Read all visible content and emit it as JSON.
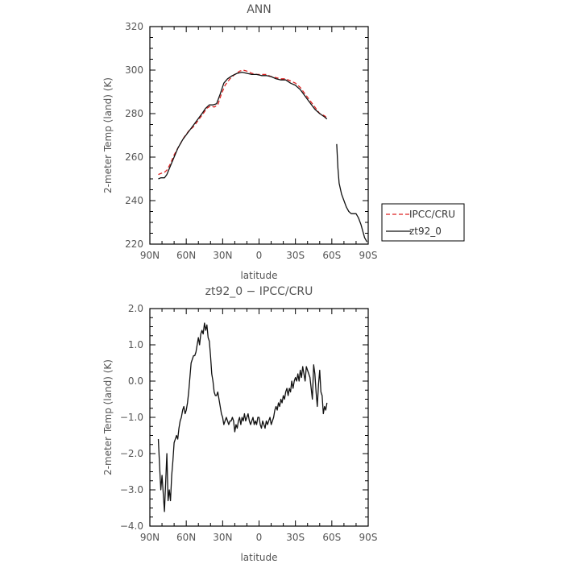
{
  "chart_data": [
    {
      "type": "line",
      "title": "ANN",
      "xlabel": "latitude",
      "ylabel": "2-meter Temp (land) (K)",
      "x_ticks": [
        "90N",
        "60N",
        "30N",
        "0",
        "30S",
        "60S",
        "90S"
      ],
      "y_ticks": [
        "320",
        "300",
        "280",
        "260",
        "240",
        "220"
      ],
      "xlim": [
        90,
        -90
      ],
      "ylim": [
        220,
        320
      ],
      "legend": {
        "placement": "right-of-plot",
        "entries": [
          "IPCC/CRU",
          "zt92_0"
        ]
      },
      "series": [
        {
          "name": "IPCC/CRU",
          "color": "#dd2222",
          "dash": "dashed",
          "points": [
            [
              83,
              252
            ],
            [
              81,
              252.5
            ],
            [
              78,
              253
            ],
            [
              76,
              254
            ],
            [
              73,
              257
            ],
            [
              70,
              261
            ],
            [
              66,
              265
            ],
            [
              62,
              269
            ],
            [
              58,
              272
            ],
            [
              54,
              274
            ],
            [
              50,
              277
            ],
            [
              46,
              280
            ],
            [
              43,
              282.5
            ],
            [
              40,
              283.5
            ],
            [
              37,
              283
            ],
            [
              34,
              284
            ],
            [
              31,
              289
            ],
            [
              28,
              293
            ],
            [
              24,
              296
            ],
            [
              20,
              298
            ],
            [
              16,
              299.5
            ],
            [
              13,
              300
            ],
            [
              10,
              299.5
            ],
            [
              6,
              298.5
            ],
            [
              2,
              298
            ],
            [
              -2,
              298
            ],
            [
              -6,
              298
            ],
            [
              -10,
              297
            ],
            [
              -14,
              296.5
            ],
            [
              -18,
              296
            ],
            [
              -22,
              296
            ],
            [
              -26,
              295
            ],
            [
              -30,
              294
            ],
            [
              -34,
              292
            ],
            [
              -38,
              289
            ],
            [
              -42,
              286
            ],
            [
              -46,
              283
            ],
            [
              -50,
              280
            ],
            [
              -54,
              279
            ],
            [
              -56,
              278
            ]
          ]
        },
        {
          "name": "zt92_0",
          "color": "#111111",
          "dash": "solid",
          "points": [
            [
              83,
              250
            ],
            [
              81,
              250.5
            ],
            [
              78,
              250.5
            ],
            [
              76,
              252
            ],
            [
              73,
              256
            ],
            [
              70,
              260
            ],
            [
              67,
              264
            ],
            [
              63,
              268
            ],
            [
              59,
              271
            ],
            [
              55,
              274
            ],
            [
              51,
              277
            ],
            [
              47,
              280
            ],
            [
              44,
              282.5
            ],
            [
              41,
              284
            ],
            [
              38,
              284
            ],
            [
              35,
              284.5
            ],
            [
              32,
              289
            ],
            [
              29,
              294
            ],
            [
              26,
              296
            ],
            [
              22,
              297.5
            ],
            [
              18,
              298.5
            ],
            [
              14,
              299
            ],
            [
              10,
              298.5
            ],
            [
              6,
              298
            ],
            [
              2,
              298
            ],
            [
              -2,
              297.5
            ],
            [
              -6,
              297.5
            ],
            [
              -10,
              297
            ],
            [
              -14,
              296
            ],
            [
              -18,
              295.5
            ],
            [
              -22,
              295.5
            ],
            [
              -26,
              294
            ],
            [
              -30,
              293
            ],
            [
              -34,
              291
            ],
            [
              -38,
              288
            ],
            [
              -42,
              285
            ],
            [
              -46,
              282
            ],
            [
              -50,
              280
            ],
            [
              -54,
              278.5
            ],
            [
              -56,
              277.5
            ],
            null,
            [
              -64,
              266
            ],
            [
              -65,
              255
            ],
            [
              -66,
              248
            ],
            [
              -68,
              243
            ],
            [
              -70,
              240
            ],
            [
              -72,
              237
            ],
            [
              -74,
              235
            ],
            [
              -76,
              234
            ],
            [
              -80,
              234
            ],
            [
              -82,
              232
            ],
            [
              -84,
              229
            ],
            [
              -87,
              223
            ],
            [
              -89,
              221
            ]
          ]
        }
      ]
    },
    {
      "type": "line",
      "title": "zt92_0 − IPCC/CRU",
      "xlabel": "latitude",
      "ylabel": "2-meter Temp (land) (K)",
      "x_ticks": [
        "90N",
        "60N",
        "30N",
        "0",
        "30S",
        "60S",
        "90S"
      ],
      "y_ticks": [
        "2.0",
        "1.0",
        "0.0",
        "−1.0",
        "−2.0",
        "−3.0",
        "−4.0"
      ],
      "xlim": [
        90,
        -90
      ],
      "ylim": [
        -4,
        2
      ],
      "series": [
        {
          "color": "#111111",
          "dash": "solid",
          "points": [
            [
              83,
              -1.6
            ],
            [
              82,
              -2.3
            ],
            [
              81,
              -3.0
            ],
            [
              80,
              -2.6
            ],
            [
              79,
              -3.1
            ],
            [
              78,
              -3.6
            ],
            [
              77,
              -2.8
            ],
            [
              76,
              -2.0
            ],
            [
              75,
              -3.3
            ],
            [
              74,
              -3.0
            ],
            [
              73,
              -3.3
            ],
            [
              72,
              -2.6
            ],
            [
              71,
              -2.2
            ],
            [
              70,
              -1.7
            ],
            [
              69,
              -1.6
            ],
            [
              68,
              -1.5
            ],
            [
              67,
              -1.6
            ],
            [
              66,
              -1.3
            ],
            [
              65,
              -1.1
            ],
            [
              64,
              -1.0
            ],
            [
              63,
              -0.8
            ],
            [
              62,
              -0.7
            ],
            [
              61,
              -0.9
            ],
            [
              60,
              -0.8
            ],
            [
              59,
              -0.6
            ],
            [
              58,
              -0.3
            ],
            [
              57,
              0.1
            ],
            [
              56,
              0.5
            ],
            [
              55,
              0.6
            ],
            [
              54,
              0.7
            ],
            [
              53,
              0.7
            ],
            [
              52,
              0.8
            ],
            [
              51,
              1.0
            ],
            [
              50,
              1.2
            ],
            [
              49,
              1.0
            ],
            [
              48,
              1.3
            ],
            [
              47,
              1.4
            ],
            [
              46,
              1.3
            ],
            [
              45,
              1.6
            ],
            [
              44,
              1.4
            ],
            [
              43,
              1.55
            ],
            [
              42,
              1.2
            ],
            [
              41,
              1.1
            ],
            [
              40,
              0.7
            ],
            [
              39,
              0.2
            ],
            [
              38,
              0.0
            ],
            [
              37,
              -0.3
            ],
            [
              36,
              -0.4
            ],
            [
              35,
              -0.4
            ],
            [
              34,
              -0.3
            ],
            [
              33,
              -0.5
            ],
            [
              32,
              -0.7
            ],
            [
              31,
              -0.9
            ],
            [
              30,
              -1.0
            ],
            [
              29,
              -1.2
            ],
            [
              28,
              -1.1
            ],
            [
              27,
              -1.0
            ],
            [
              26,
              -1.1
            ],
            [
              25,
              -1.2
            ],
            [
              24,
              -1.1
            ],
            [
              23,
              -1.1
            ],
            [
              22,
              -1.0
            ],
            [
              21,
              -1.1
            ],
            [
              20,
              -1.4
            ],
            [
              19,
              -1.2
            ],
            [
              18,
              -1.3
            ],
            [
              17,
              -1.1
            ],
            [
              16,
              -1.0
            ],
            [
              15,
              -1.2
            ],
            [
              14,
              -1.0
            ],
            [
              13,
              -1.1
            ],
            [
              12,
              -0.9
            ],
            [
              11,
              -1.1
            ],
            [
              10,
              -1.0
            ],
            [
              9,
              -0.9
            ],
            [
              8,
              -1.1
            ],
            [
              7,
              -1.2
            ],
            [
              6,
              -1.1
            ],
            [
              5,
              -1.0
            ],
            [
              4,
              -1.2
            ],
            [
              3,
              -1.1
            ],
            [
              2,
              -1.2
            ],
            [
              1,
              -1.0
            ],
            [
              0,
              -1.0
            ],
            [
              -1,
              -1.2
            ],
            [
              -2,
              -1.3
            ],
            [
              -3,
              -1.1
            ],
            [
              -4,
              -1.2
            ],
            [
              -5,
              -1.3
            ],
            [
              -6,
              -1.1
            ],
            [
              -7,
              -1.2
            ],
            [
              -8,
              -1.1
            ],
            [
              -9,
              -1.0
            ],
            [
              -10,
              -1.2
            ],
            [
              -11,
              -1.1
            ],
            [
              -12,
              -1.0
            ],
            [
              -13,
              -0.8
            ],
            [
              -14,
              -0.7
            ],
            [
              -15,
              -0.8
            ],
            [
              -16,
              -0.6
            ],
            [
              -17,
              -0.7
            ],
            [
              -18,
              -0.5
            ],
            [
              -19,
              -0.6
            ],
            [
              -20,
              -0.4
            ],
            [
              -21,
              -0.5
            ],
            [
              -22,
              -0.3
            ],
            [
              -23,
              -0.2
            ],
            [
              -24,
              -0.4
            ],
            [
              -25,
              -0.2
            ],
            [
              -26,
              -0.3
            ],
            [
              -27,
              0.0
            ],
            [
              -28,
              -0.2
            ],
            [
              -29,
              0.0
            ],
            [
              -30,
              0.1
            ],
            [
              -31,
              0.0
            ],
            [
              -32,
              0.2
            ],
            [
              -33,
              0.0
            ],
            [
              -34,
              0.3
            ],
            [
              -35,
              0.1
            ],
            [
              -36,
              0.4
            ],
            [
              -37,
              0.2
            ],
            [
              -38,
              0.0
            ],
            [
              -39,
              0.4
            ],
            [
              -40,
              0.3
            ],
            [
              -41,
              0.2
            ],
            [
              -42,
              0.1
            ],
            [
              -43,
              -0.2
            ],
            [
              -44,
              -0.5
            ],
            [
              -45,
              0.45
            ],
            [
              -46,
              0.2
            ],
            [
              -47,
              -0.3
            ],
            [
              -48,
              -0.7
            ],
            [
              -49,
              -0.1
            ],
            [
              -50,
              0.3
            ],
            [
              -51,
              -0.3
            ],
            [
              -52,
              -0.4
            ],
            [
              -53,
              -0.9
            ],
            [
              -54,
              -0.7
            ],
            [
              -55,
              -0.8
            ],
            [
              -56,
              -0.6
            ]
          ]
        }
      ]
    }
  ]
}
